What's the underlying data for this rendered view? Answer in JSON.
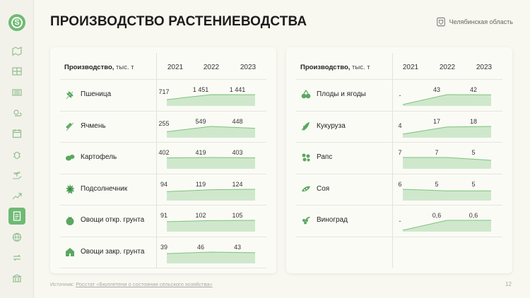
{
  "header": {
    "title": "ПРОИЗВОДСТВО РАСТЕНИЕВОДСТВА",
    "region": "Челябинская область"
  },
  "sidebar": {
    "logo_letter": "S",
    "icons": [
      "map-icon",
      "grid-icon",
      "field-icon",
      "weather-icon",
      "calendar-icon",
      "bug-icon",
      "plant-hand-icon",
      "chart-up-icon",
      "document-icon",
      "globe-icon",
      "exchange-icon",
      "bank-icon"
    ],
    "active_index": 8
  },
  "left_table": {
    "head_bold": "Производство,",
    "head_unit": "тыс. т",
    "years": [
      "2021",
      "2022",
      "2023"
    ],
    "rows": [
      {
        "icon": "wheat-icon",
        "label": "Пшеница",
        "values": [
          "717",
          "1 451",
          "1 441"
        ],
        "nums": [
          717,
          1451,
          1441
        ]
      },
      {
        "icon": "barley-icon",
        "label": "Ячмень",
        "values": [
          "255",
          "549",
          "448"
        ],
        "nums": [
          255,
          549,
          448
        ]
      },
      {
        "icon": "potato-icon",
        "label": "Картофель",
        "values": [
          "402",
          "419",
          "403"
        ],
        "nums": [
          402,
          419,
          403
        ]
      },
      {
        "icon": "sunflower-icon",
        "label": "Подсолнечник",
        "values": [
          "94",
          "119",
          "124"
        ],
        "nums": [
          94,
          119,
          124
        ]
      },
      {
        "icon": "tomato-icon",
        "label": "Овощи откр. грунта",
        "values": [
          "91",
          "102",
          "105"
        ],
        "nums": [
          91,
          102,
          105
        ]
      },
      {
        "icon": "greenhouse-icon",
        "label": "Овощи закр. грунта",
        "values": [
          "39",
          "46",
          "43"
        ],
        "nums": [
          39,
          46,
          43
        ]
      }
    ]
  },
  "right_table": {
    "head_bold": "Производство,",
    "head_unit": "тыс. т",
    "years": [
      "2021",
      "2022",
      "2023"
    ],
    "rows": [
      {
        "icon": "berries-icon",
        "label": "Плоды и ягоды",
        "values": [
          "-",
          "43",
          "42"
        ],
        "nums": [
          0,
          43,
          42
        ]
      },
      {
        "icon": "corn-icon",
        "label": "Кукуруза",
        "values": [
          "4",
          "17",
          "18"
        ],
        "nums": [
          4,
          17,
          18
        ]
      },
      {
        "icon": "rapeseed-icon",
        "label": "Рапс",
        "values": [
          "7",
          "7",
          "5"
        ],
        "nums": [
          7,
          7,
          5
        ]
      },
      {
        "icon": "soy-icon",
        "label": "Соя",
        "values": [
          "6",
          "5",
          "5"
        ],
        "nums": [
          6,
          5,
          5
        ]
      },
      {
        "icon": "grape-icon",
        "label": "Виноград",
        "values": [
          "-",
          "0,6",
          "0,6"
        ],
        "nums": [
          0,
          0.6,
          0.6
        ]
      }
    ]
  },
  "footer": {
    "source_label": "Источник:",
    "source_link": "Росстат «Бюллетени о состоянии сельского хозяйства»",
    "page": "12"
  },
  "colors": {
    "accent": "#6fba74",
    "icon": "#5aa860",
    "spark_fill": "#cfe8cc",
    "spark_line": "#7cc27f"
  }
}
